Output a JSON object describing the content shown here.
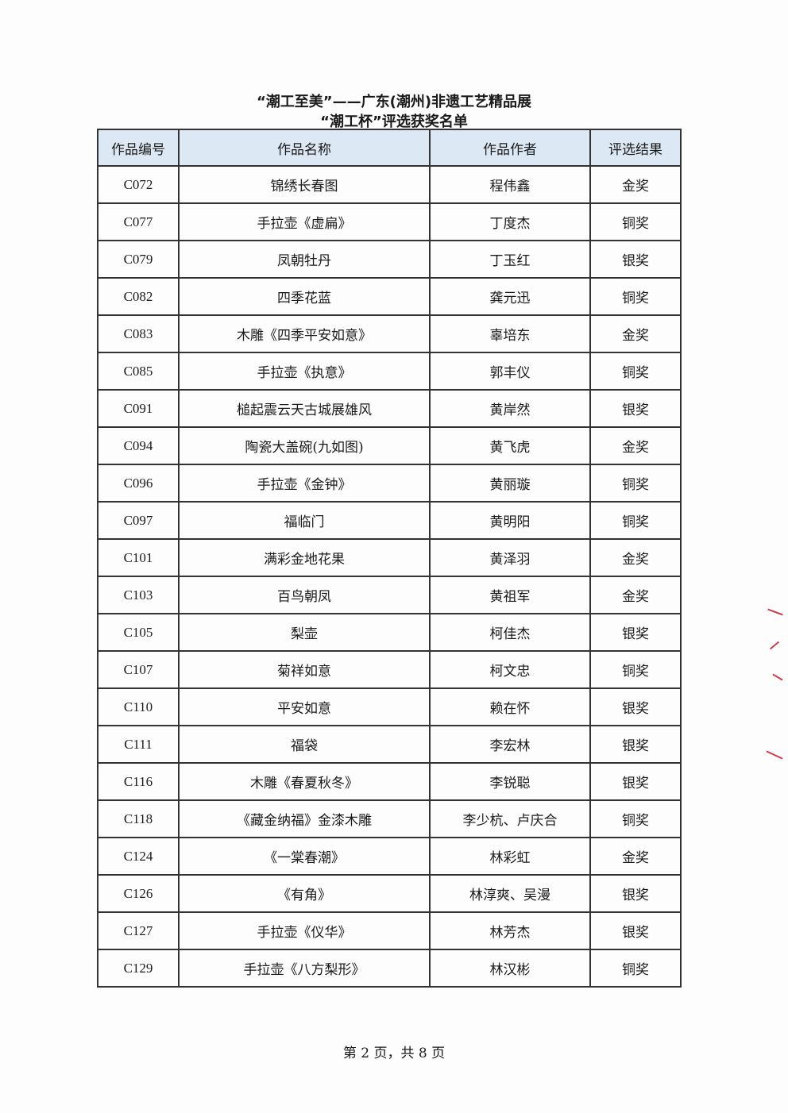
{
  "title_line1": "“潮工至美”——广东(潮州)非遗工艺精品展",
  "title_line2": "“潮工杯”评选获奖名单",
  "columns": [
    "作品编号",
    "作品名称",
    "作品作者",
    "评选结果"
  ],
  "rows": [
    [
      "C072",
      "锦绣长春图",
      "程伟鑫",
      "金奖"
    ],
    [
      "C077",
      "手拉壶《虚扁》",
      "丁度杰",
      "铜奖"
    ],
    [
      "C079",
      "凤朝牡丹",
      "丁玉红",
      "银奖"
    ],
    [
      "C082",
      "四季花蓝",
      "龚元迅",
      "铜奖"
    ],
    [
      "C083",
      "木雕《四季平安如意》",
      "辜培东",
      "金奖"
    ],
    [
      "C085",
      "手拉壶《执意》",
      "郭丰仪",
      "铜奖"
    ],
    [
      "C091",
      "槌起震云天古城展雄风",
      "黄岸然",
      "银奖"
    ],
    [
      "C094",
      "陶瓷大盖碗(九如图)",
      "黄飞虎",
      "金奖"
    ],
    [
      "C096",
      "手拉壶《金钟》",
      "黄丽璇",
      "铜奖"
    ],
    [
      "C097",
      "福临门",
      "黄明阳",
      "铜奖"
    ],
    [
      "C101",
      "满彩金地花果",
      "黄泽羽",
      "金奖"
    ],
    [
      "C103",
      "百鸟朝凤",
      "黄祖军",
      "金奖"
    ],
    [
      "C105",
      "梨壶",
      "柯佳杰",
      "银奖"
    ],
    [
      "C107",
      "菊祥如意",
      "柯文忠",
      "铜奖"
    ],
    [
      "C110",
      "平安如意",
      "赖在怀",
      "银奖"
    ],
    [
      "C111",
      "福袋",
      "李宏林",
      "银奖"
    ],
    [
      "C116",
      "木雕《春夏秋冬》",
      "李锐聪",
      "银奖"
    ],
    [
      "C118",
      "《藏金纳福》金漆木雕",
      "李少杭、卢庆合",
      "铜奖"
    ],
    [
      "C124",
      "《一棠春潮》",
      "林彩虹",
      "金奖"
    ],
    [
      "C126",
      "《有角》",
      "林淳爽、吴漫",
      "银奖"
    ],
    [
      "C127",
      "手拉壶《仪华》",
      "林芳杰",
      "银奖"
    ],
    [
      "C129",
      "手拉壶《八方梨形》",
      "林汉彬",
      "铜奖"
    ]
  ],
  "footer": "第 2 页，共 8 页",
  "colors": {
    "header_bg": "#dce8f4",
    "stamp_marks": "#d2374a"
  }
}
